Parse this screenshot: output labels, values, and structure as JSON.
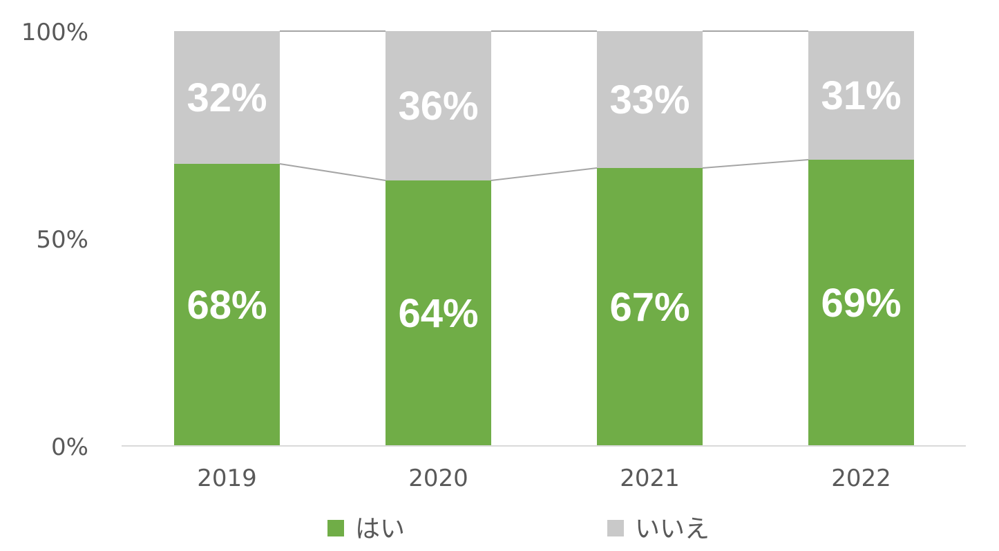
{
  "chart_data": {
    "type": "bar",
    "stacked": true,
    "percent_stacked": true,
    "categories": [
      "2019",
      "2020",
      "2021",
      "2022"
    ],
    "series": [
      {
        "name": "はい",
        "values": [
          68,
          64,
          67,
          69
        ],
        "color": "#70AD47"
      },
      {
        "name": "いいえ",
        "values": [
          32,
          36,
          33,
          31
        ],
        "color": "#C9C9C9"
      }
    ],
    "data_labels": {
      "はい": [
        "68%",
        "64%",
        "67%",
        "69%"
      ],
      "いいえ": [
        "32%",
        "36%",
        "33%",
        "31%"
      ]
    },
    "y_ticks": [
      "0%",
      "50%",
      "100%"
    ],
    "ylim": [
      0,
      100
    ],
    "series_lines": true,
    "grid": false,
    "legend_position": "bottom",
    "xlabel": "",
    "ylabel": ""
  }
}
